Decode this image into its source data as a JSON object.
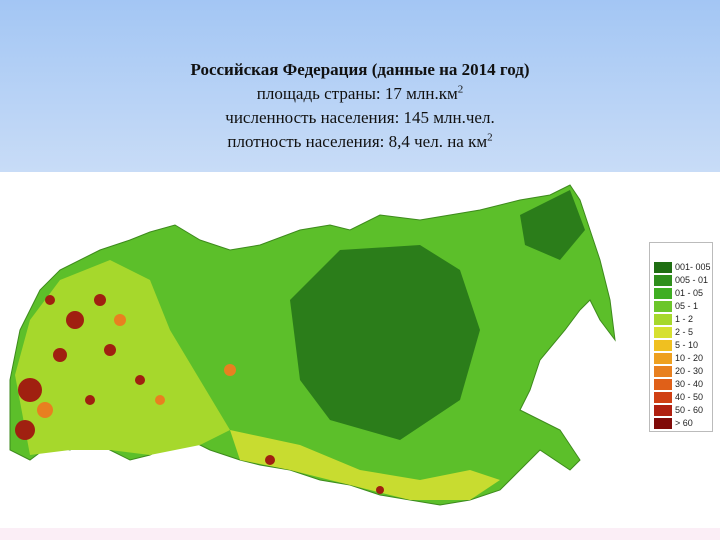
{
  "header": {
    "title": "Российская Федерация (данные на 2014 год)",
    "area": "площадь страны: 17 млн.км",
    "area_power": "2",
    "population": "численность населения: 145 млн.чел.",
    "density": "плотность населения: 8,4 чел. на км",
    "density_power": "2"
  },
  "legend": [
    {
      "label": "001- 005",
      "color": "#1f6e12"
    },
    {
      "label": "005 - 01",
      "color": "#2f8f1c"
    },
    {
      "label": "01 - 05",
      "color": "#3fae22"
    },
    {
      "label": "05 - 1",
      "color": "#6cc62a"
    },
    {
      "label": "1 - 2",
      "color": "#a6d82c"
    },
    {
      "label": "2 - 5",
      "color": "#d6e030"
    },
    {
      "label": "5 - 10",
      "color": "#f0c020"
    },
    {
      "label": "10 - 20",
      "color": "#eea020"
    },
    {
      "label": "20 - 30",
      "color": "#e88020"
    },
    {
      "label": "30 - 40",
      "color": "#e06018"
    },
    {
      "label": "40 - 50",
      "color": "#d04014"
    },
    {
      "label": "50 - 60",
      "color": "#b02010"
    },
    {
      "label": "> 60",
      "color": "#800a08"
    }
  ]
}
